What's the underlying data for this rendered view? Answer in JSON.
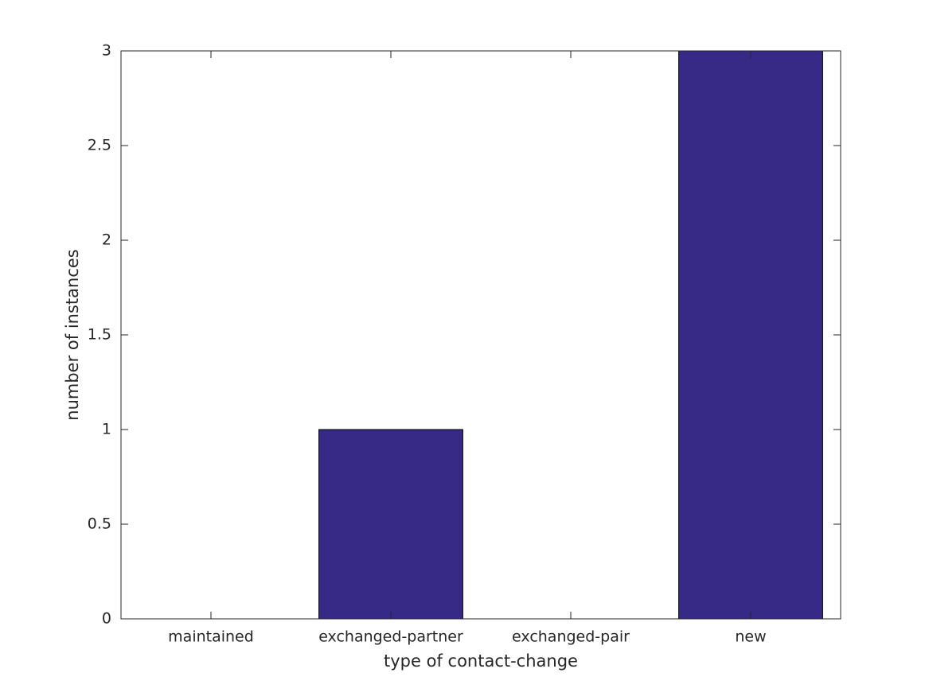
{
  "chart_data": {
    "type": "bar",
    "categories": [
      "maintained",
      "exchanged-partner",
      "exchanged-pair",
      "new"
    ],
    "values": [
      0,
      1,
      0,
      3
    ],
    "color": "#362a86",
    "xlabel": "type of contact-change",
    "ylabel": "number of instances",
    "ylim": [
      0,
      3
    ],
    "yticks": [
      0,
      0.5,
      1,
      1.5,
      2,
      2.5,
      3
    ],
    "grid": false
  }
}
